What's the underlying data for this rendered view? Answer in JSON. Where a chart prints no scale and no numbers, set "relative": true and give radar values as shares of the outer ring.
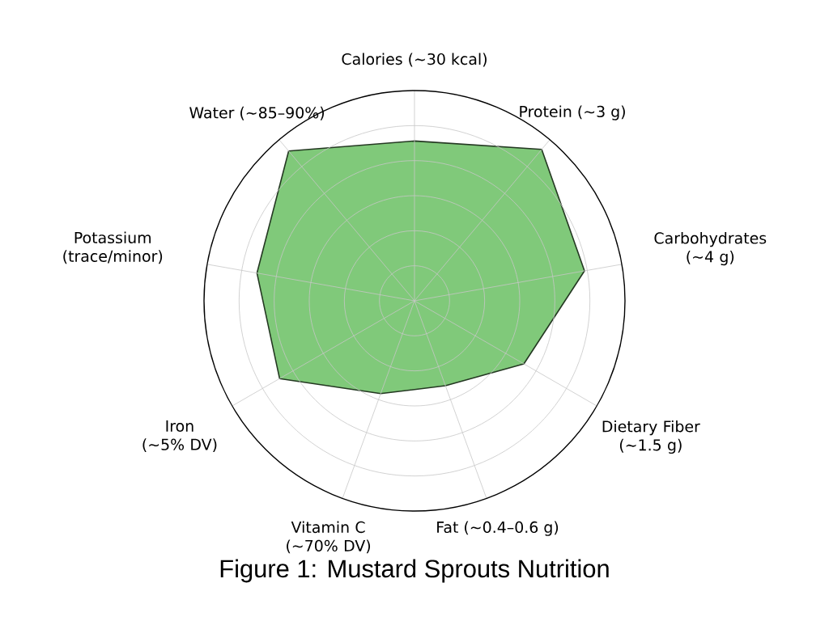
{
  "chart_data": {
    "type": "radar",
    "title": "Figure 1: Mustard Sprouts Nutrition",
    "categories": [
      "Calories (~30 kcal)",
      "Protein (~3 g)",
      "Carbohydrates (~4 g)",
      "Dietary Fiber (~1.5 g)",
      "Fat (~0.4–0.6 g)",
      "Vitamin C (~70% DV)",
      "Iron (~5% DV)",
      "Potassium (trace/minor)",
      "Water (~85–90%)"
    ],
    "series": [
      {
        "color": "#80c97a",
        "values": [
          0.76,
          0.94,
          0.82,
          0.6,
          0.43,
          0.47,
          0.74,
          0.76,
          0.93
        ]
      }
    ],
    "relative": true,
    "grid": true
  }
}
